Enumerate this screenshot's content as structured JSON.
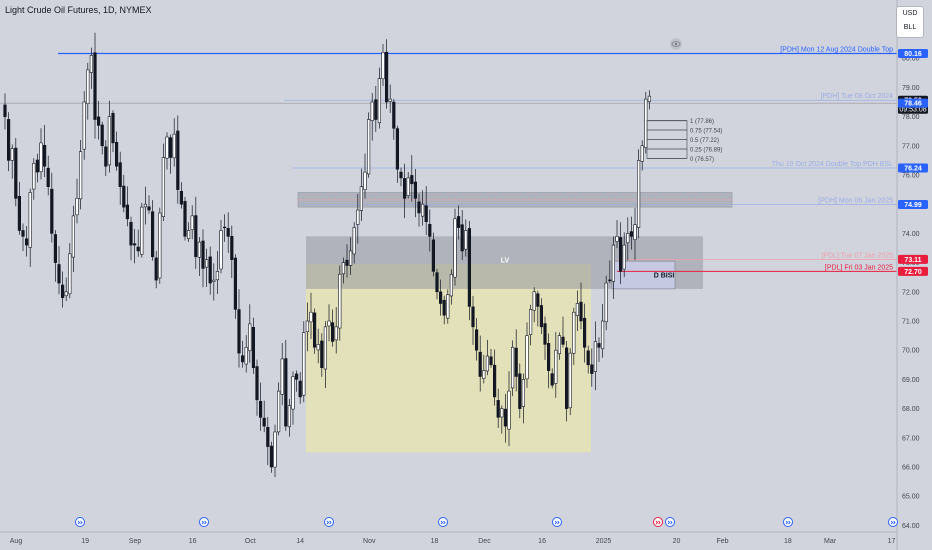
{
  "header": {
    "title": "Light Crude Oil Futures, 1D, NYMEX"
  },
  "currency": {
    "top": "USD",
    "bottom": "BLL"
  },
  "price_badges": [
    {
      "value": "80.16",
      "price": 80.16,
      "color": "#2962ff"
    },
    {
      "value": "78.56",
      "price": 78.56,
      "color": "#131722",
      "sub": "09:53:08"
    },
    {
      "value": "78.46",
      "price": 78.46,
      "color": "#2962ff"
    },
    {
      "value": "76.24",
      "price": 76.24,
      "color": "#2962ff"
    },
    {
      "value": "74.99",
      "price": 74.99,
      "color": "#2962ff"
    },
    {
      "value": "73.11",
      "price": 73.11,
      "color": "#e91e3f"
    },
    {
      "value": "72.70",
      "price": 72.7,
      "color": "#e91e3f"
    }
  ],
  "level_labels": [
    {
      "text": "[PDH] Mon 12 Aug 2024 Double Top",
      "price": 80.16,
      "color": "#2962ff"
    },
    {
      "text": "[PDH] Tue 08 Oct 2024",
      "price": 78.56,
      "color": "#9aaee6"
    },
    {
      "text": "Thu 10 Oct 2024 Double Top PDH BSL",
      "price": 76.24,
      "color": "#9aaee6"
    },
    {
      "text": "[PDH] Mon 06 Jan 2025",
      "price": 74.99,
      "color": "#9aaee6"
    },
    {
      "text": "[PDL] Tue 07 Jan 2025",
      "price": 73.11,
      "color": "#f0a0a8"
    },
    {
      "text": "[PDL] Fri 03 Jan 2025",
      "price": 72.7,
      "color": "#e91e3f"
    }
  ],
  "fib_levels": [
    {
      "text": "1 (77.86)",
      "price": 77.86
    },
    {
      "text": "0.75 (77.54)",
      "price": 77.54
    },
    {
      "text": "0.5 (77.22)",
      "price": 77.22
    },
    {
      "text": "0.25 (76.89)",
      "price": 76.89
    },
    {
      "text": "0 (76.57)",
      "price": 76.57
    }
  ],
  "zones": {
    "lv_label": "LV",
    "bisi_label": "D BISI"
  },
  "chart_data": {
    "type": "candlestick",
    "title": "Light Crude Oil Futures, 1D, NYMEX",
    "ylim": [
      64,
      81
    ],
    "yticks": [
      80,
      79,
      78,
      77,
      76,
      75,
      74,
      73,
      72,
      71,
      70,
      69,
      68,
      67,
      66,
      65,
      64
    ],
    "ytick_labels": [
      "80.00",
      "79.00",
      "78.00",
      "77.00",
      "76.00",
      "75.00",
      "74.00",
      "73.00",
      "72.00",
      "71.00",
      "70.00",
      "69.00",
      "68.00",
      "67.00",
      "66.00",
      "65.00",
      "64.00"
    ],
    "xticks": [
      {
        "label": "Aug",
        "day": 0
      },
      {
        "label": "19",
        "day": 18
      },
      {
        "label": "Sep",
        "day": 31
      },
      {
        "label": "16",
        "day": 46
      },
      {
        "label": "Oct",
        "day": 61
      },
      {
        "label": "14",
        "day": 74
      },
      {
        "label": "Nov",
        "day": 92
      },
      {
        "label": "18",
        "day": 109
      },
      {
        "label": "Dec",
        "day": 122
      },
      {
        "label": "16",
        "day": 137
      },
      {
        "label": "2025",
        "day": 153
      },
      {
        "label": "20",
        "day": 172
      },
      {
        "label": "Feb",
        "day": 184
      },
      {
        "label": "18",
        "day": 201
      },
      {
        "label": "Mar",
        "day": 212
      },
      {
        "label": "17",
        "day": 228
      }
    ],
    "x_axis_label": "",
    "y_axis_label": "",
    "grid": false,
    "close_series": [
      78.0,
      76.5,
      76.9,
      75.2,
      74.1,
      73.9,
      73.6,
      75.4,
      76.4,
      76.1,
      77.1,
      76.3,
      75.6,
      74.0,
      73.0,
      72.3,
      71.8,
      72.0,
      73.3,
      74.6,
      75.2,
      76.8,
      78.5,
      79.6,
      80.1,
      77.9,
      77.7,
      77.0,
      76.3,
      78.0,
      77.1,
      76.3,
      75.6,
      74.9,
      74.5,
      73.6,
      73.6,
      73.4,
      74.9,
      75.0,
      74.8,
      73.2,
      72.4,
      74.7,
      76.6,
      77.3,
      76.6,
      77.4,
      75.5,
      75.0,
      73.9,
      74.1,
      74.6,
      73.2,
      73.7,
      72.8,
      73.1,
      72.3,
      72.4,
      72.7,
      74.1,
      74.2,
      73.9,
      73.1,
      71.4,
      69.9,
      69.6,
      70.1,
      70.9,
      69.4,
      68.3,
      67.7,
      67.4,
      66.7,
      66.0,
      67.2,
      68.6,
      69.7,
      67.4,
      68.1,
      69.1,
      69.0,
      68.4,
      70.6,
      71.0,
      71.3,
      70.1,
      70.2,
      69.4,
      70.8,
      71.0,
      70.3,
      70.8,
      72.6,
      73.0,
      72.9,
      73.4,
      74.2,
      74.8,
      75.6,
      76.1,
      77.9,
      78.5,
      77.9,
      79.3,
      80.2,
      78.5,
      78.6,
      77.6,
      76.2,
      75.9,
      75.2,
      75.9,
      75.7,
      75.2,
      74.7,
      75.0,
      74.4,
      73.9,
      72.7,
      72.0,
      71.6,
      71.2,
      71.9,
      72.6,
      74.5,
      74.2,
      73.4,
      74.1,
      71.5,
      70.8,
      70.0,
      69.1,
      69.3,
      69.8,
      69.5,
      68.4,
      67.7,
      68.0,
      67.4,
      68.6,
      70.1,
      69.1,
      68.0,
      69.0,
      70.5,
      71.4,
      72.0,
      71.5,
      70.8,
      70.2,
      69.3,
      68.8,
      70.0,
      70.5,
      70.2,
      68.0,
      69.9,
      71.3,
      71.6,
      71.0,
      70.1,
      69.5,
      69.2,
      70.3,
      70.1,
      71.0,
      72.3,
      72.4,
      73.6,
      73.9,
      72.7,
      73.6,
      74.0,
      73.9,
      74.3,
      76.5,
      77.0,
      78.6,
      78.7
    ]
  }
}
